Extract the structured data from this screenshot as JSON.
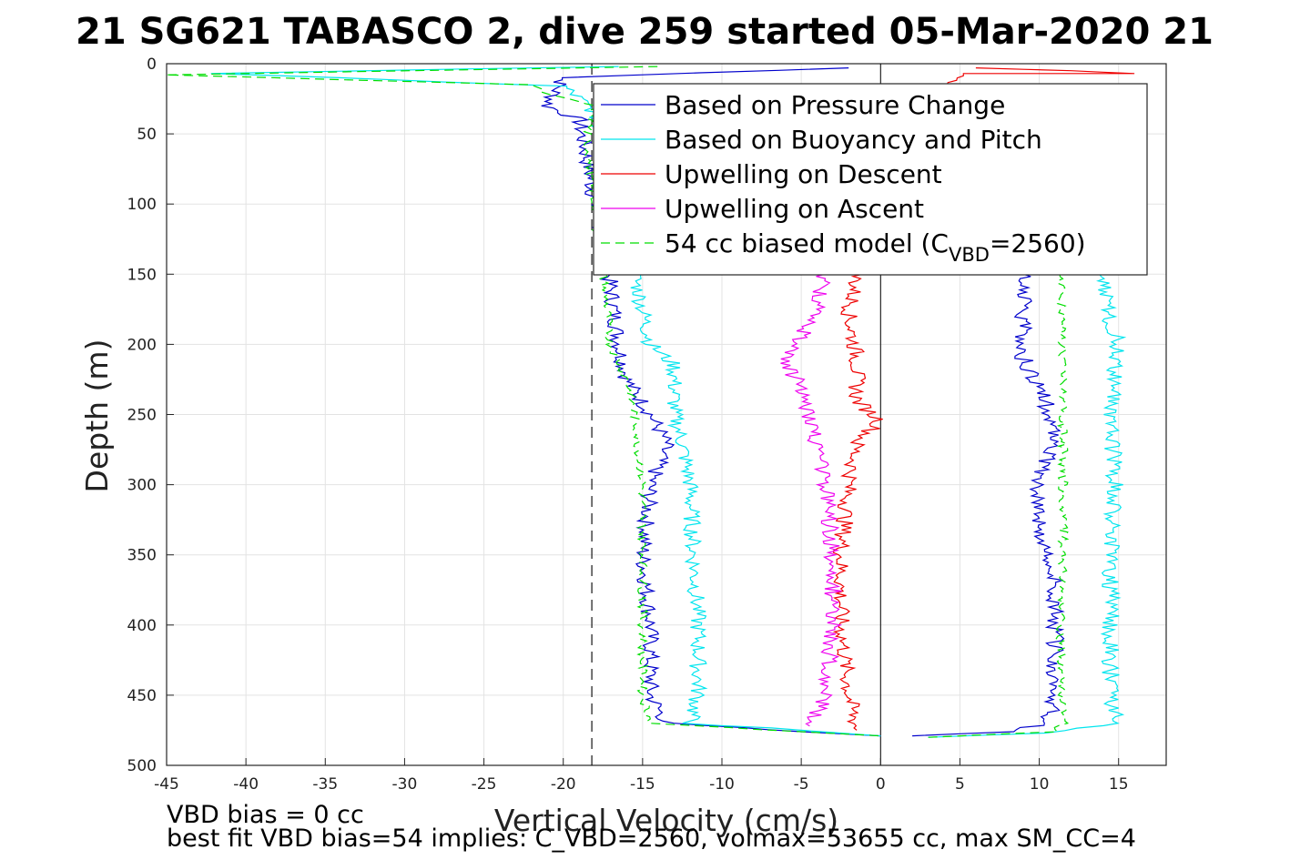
{
  "chart_data": {
    "type": "line",
    "title": "21 SG621 TABASCO 2, dive 259 started 05-Mar-2020 21",
    "xlabel": "Vertical Velocity (cm/s)",
    "ylabel": "Depth (m)",
    "xlim": [
      -45,
      18
    ],
    "ylim": [
      0,
      500
    ],
    "y_reversed": true,
    "grid": true,
    "xticks": [
      -45,
      -40,
      -35,
      -30,
      -25,
      -20,
      -15,
      -10,
      -5,
      0,
      5,
      10,
      15
    ],
    "yticks": [
      0,
      50,
      100,
      150,
      200,
      250,
      300,
      350,
      400,
      450,
      500
    ],
    "reference_lines": {
      "dashed_vertical_x": -18.2,
      "solid_vertical_x": 0
    },
    "legend": {
      "placement": "top-right",
      "entries": [
        {
          "label": "Based on Pressure Change",
          "color": "#0000cc",
          "style": "solid"
        },
        {
          "label": "Based on Buoyancy and Pitch",
          "color": "#00e5ee",
          "style": "solid"
        },
        {
          "label": "Upwelling on Descent",
          "color": "#ee0000",
          "style": "solid"
        },
        {
          "label": "Upwelling on Ascent",
          "color": "#ee00ee",
          "style": "solid"
        },
        {
          "label": "54 cc biased model (C",
          "sub": "VBD",
          "suffix": "=2560)",
          "color": "#00dd00",
          "style": "dashed"
        }
      ]
    },
    "series": [
      {
        "name": "Based on Pressure Change",
        "color": "#0000cc",
        "descent": [
          [
            -2,
            3
          ],
          [
            -20,
            10
          ],
          [
            -21,
            30
          ],
          [
            -19,
            40
          ],
          [
            -17,
            160
          ],
          [
            -16.5,
            200
          ],
          [
            -16,
            225
          ],
          [
            -14.5,
            250
          ],
          [
            -13.5,
            270
          ],
          [
            -14.5,
            300
          ],
          [
            -15,
            350
          ],
          [
            -14.5,
            400
          ],
          [
            -14.5,
            450
          ],
          [
            -13.5,
            470
          ],
          [
            -5,
            476
          ],
          [
            0,
            479
          ]
        ],
        "ascent": [
          [
            2,
            479
          ],
          [
            8,
            476
          ],
          [
            10.5,
            470
          ],
          [
            11,
            450
          ],
          [
            11,
            400
          ],
          [
            11,
            360
          ],
          [
            10,
            340
          ],
          [
            10,
            300
          ],
          [
            10.5,
            280
          ],
          [
            11,
            260
          ],
          [
            10,
            230
          ],
          [
            9,
            210
          ],
          [
            9,
            190
          ],
          [
            9,
            150
          ]
        ]
      },
      {
        "name": "Based on Buoyancy and Pitch",
        "color": "#00e5ee",
        "descent": [
          [
            -17,
            2
          ],
          [
            -42,
            7
          ],
          [
            -20,
            16
          ],
          [
            -19,
            25
          ],
          [
            -18,
            35
          ],
          [
            -15.5,
            150
          ],
          [
            -14.5,
            200
          ],
          [
            -13,
            215
          ],
          [
            -13,
            250
          ],
          [
            -12.5,
            270
          ],
          [
            -12,
            300
          ],
          [
            -11.8,
            350
          ],
          [
            -11.5,
            400
          ],
          [
            -11.5,
            450
          ],
          [
            -12,
            470
          ],
          [
            -5,
            475
          ],
          [
            0,
            479
          ]
        ],
        "ascent": [
          [
            3,
            480
          ],
          [
            10,
            477
          ],
          [
            15,
            470
          ],
          [
            14.5,
            450
          ],
          [
            14.5,
            400
          ],
          [
            14.5,
            350
          ],
          [
            14.8,
            300
          ],
          [
            14.5,
            250
          ],
          [
            14.8,
            220
          ],
          [
            15,
            200
          ],
          [
            14.5,
            185
          ],
          [
            13.8,
            150
          ]
        ]
      },
      {
        "name": "Upwelling on Descent",
        "color": "#ee0000",
        "descent": [
          [
            6,
            3
          ],
          [
            12,
            5
          ],
          [
            16,
            7
          ],
          [
            5,
            7
          ],
          [
            -1.5,
            150
          ],
          [
            -2,
            180
          ],
          [
            -1.5,
            210
          ],
          [
            -1.5,
            240
          ],
          [
            0,
            255
          ],
          [
            -1.5,
            270
          ],
          [
            -2,
            300
          ],
          [
            -2.5,
            350
          ],
          [
            -2.5,
            400
          ],
          [
            -2,
            450
          ],
          [
            -1.5,
            475
          ]
        ]
      },
      {
        "name": "Upwelling on Ascent",
        "color": "#ee00ee",
        "ascent": [
          [
            -4.5,
            472
          ],
          [
            -3.5,
            450
          ],
          [
            -3,
            400
          ],
          [
            -3,
            350
          ],
          [
            -3.5,
            300
          ],
          [
            -4,
            270
          ],
          [
            -4.5,
            250
          ],
          [
            -5,
            230
          ],
          [
            -6,
            215
          ],
          [
            -5,
            195
          ],
          [
            -4,
            175
          ],
          [
            -3.5,
            150
          ]
        ]
      },
      {
        "name": "54 cc biased model",
        "color": "#00dd00",
        "dashed": true,
        "descent": [
          [
            -14,
            2
          ],
          [
            -45,
            8
          ],
          [
            -22,
            15
          ],
          [
            -21,
            22
          ],
          [
            -18,
            30
          ],
          [
            -18.5,
            50
          ],
          [
            -18.2,
            90
          ],
          [
            -17.5,
            150
          ],
          [
            -17,
            200
          ],
          [
            -16,
            225
          ],
          [
            -15.5,
            250
          ],
          [
            -15,
            300
          ],
          [
            -15,
            350
          ],
          [
            -15,
            400
          ],
          [
            -15,
            450
          ],
          [
            -14.5,
            470
          ],
          [
            -5,
            476
          ],
          [
            0,
            479
          ]
        ],
        "ascent": [
          [
            3,
            480
          ],
          [
            11,
            476
          ],
          [
            11.5,
            470
          ],
          [
            11.5,
            450
          ],
          [
            11.3,
            400
          ],
          [
            11.5,
            350
          ],
          [
            11.5,
            300
          ],
          [
            11.5,
            250
          ],
          [
            11.5,
            200
          ],
          [
            11.3,
            150
          ]
        ]
      }
    ]
  },
  "notes": {
    "line1": "VBD bias = 0 cc",
    "line2": "best fit VBD bias=54 implies: C_VBD=2560, volmax=53655 cc, max SM_CC=4"
  }
}
